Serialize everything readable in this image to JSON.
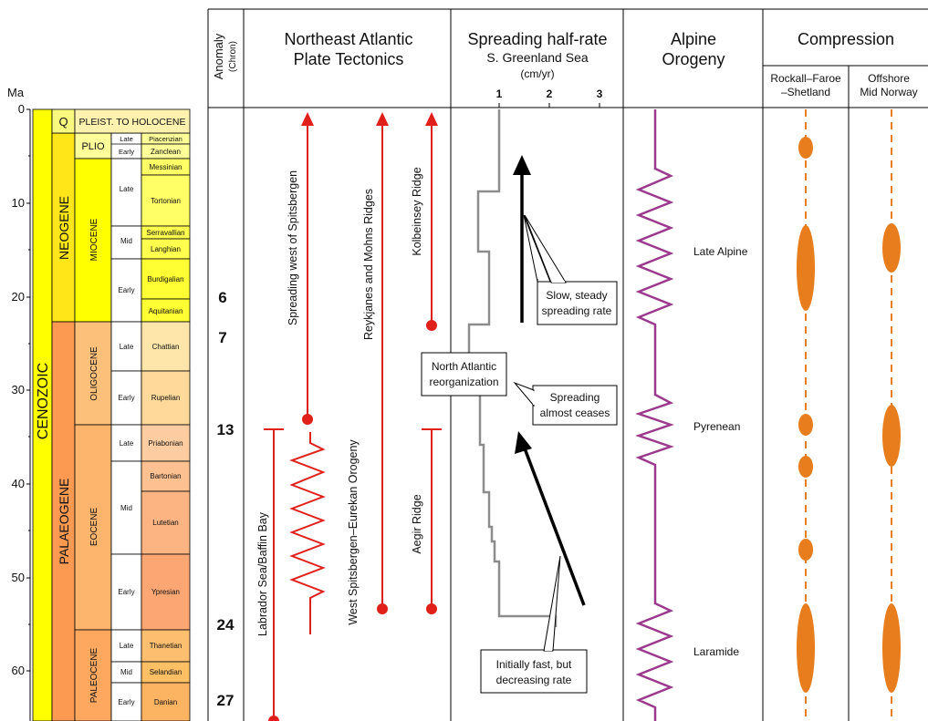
{
  "axis": {
    "unit": "Ma",
    "ticks": [
      "0",
      "10",
      "20",
      "30",
      "40",
      "50",
      "60"
    ]
  },
  "timescale": {
    "era": "CENOZOIC",
    "periods": [
      "NEOGENE",
      "PALAEOGENE"
    ],
    "quaternary": "Q",
    "quaternary_label": "PLEIST. TO HOLOCENE",
    "epochs": [
      "PLIO",
      "MIOCENE",
      "OLIGOCENE",
      "EOCENE",
      "PALEOCENE"
    ],
    "subepochs": [
      "Late",
      "Early",
      "Late",
      "Mid",
      "Early",
      "Late",
      "Early",
      "Late",
      "Mid",
      "Early",
      "Late",
      "Mid",
      "Early"
    ],
    "stages": [
      "Piacenzian",
      "Zanclean",
      "Messinian",
      "Tortonian",
      "Serravallian",
      "Langhian",
      "Burdigalian",
      "Aquitanian",
      "Chattian",
      "Rupelian",
      "Priabonian",
      "Bartonian",
      "Lutetian",
      "Ypresian",
      "Thanetian",
      "Selandian",
      "Danian"
    ]
  },
  "columns": {
    "anomaly": [
      "Anomaly",
      "(Chron)"
    ],
    "tectonics": [
      "Northeast Atlantic",
      "Plate Tectonics"
    ],
    "spreading": [
      "Spreading half-rate",
      "S. Greenland Sea",
      "(cm/yr)"
    ],
    "orogeny": [
      "Alpine",
      "Orogeny"
    ],
    "compression": "Compression",
    "rockall": [
      "Rockall–Faroe",
      "–Shetland"
    ],
    "offshore": [
      "Offshore",
      "Mid Norway"
    ]
  },
  "spreading_ticks": [
    "1",
    "2",
    "3"
  ],
  "anomalies": [
    "6",
    "7",
    "13",
    "24",
    "27"
  ],
  "tectonics_labels": [
    "Spreading west of Spitsbergen",
    "Reykjanes and Mohns Ridges",
    "Kolbeinsey Ridge",
    "Labrador Sea/Baffin Bay",
    "West Spitsbergen–Eurekan Orogeny",
    "Aegir Ridge"
  ],
  "spreading_annotations": {
    "steady": [
      "Slow, steady",
      "spreading rate"
    ],
    "reorg": [
      "North Atlantic",
      "reorganization"
    ],
    "ceases": [
      "Spreading",
      "almost ceases"
    ],
    "initial": [
      "Initially fast, but",
      "decreasing rate"
    ]
  },
  "orogeny_labels": [
    "Late Alpine",
    "Pyrenean",
    "Laramide"
  ],
  "colors": {
    "cenozoic": "#ffff00",
    "neogene": "#ffe619",
    "plio": "#ffff99",
    "miocene": "#ffff00",
    "palaeogene": "#fd9a52",
    "oligocene": "#fdc07a",
    "eocene": "#fdb46c",
    "paleocene": "#fda75f",
    "quaternary": "#f9f97f",
    "tectonics_red": "#e0201b",
    "spreading_grey": "#8c8c8c",
    "orogeny_purple": "#9b3a8c",
    "compression_orange": "#e87d1e"
  }
}
